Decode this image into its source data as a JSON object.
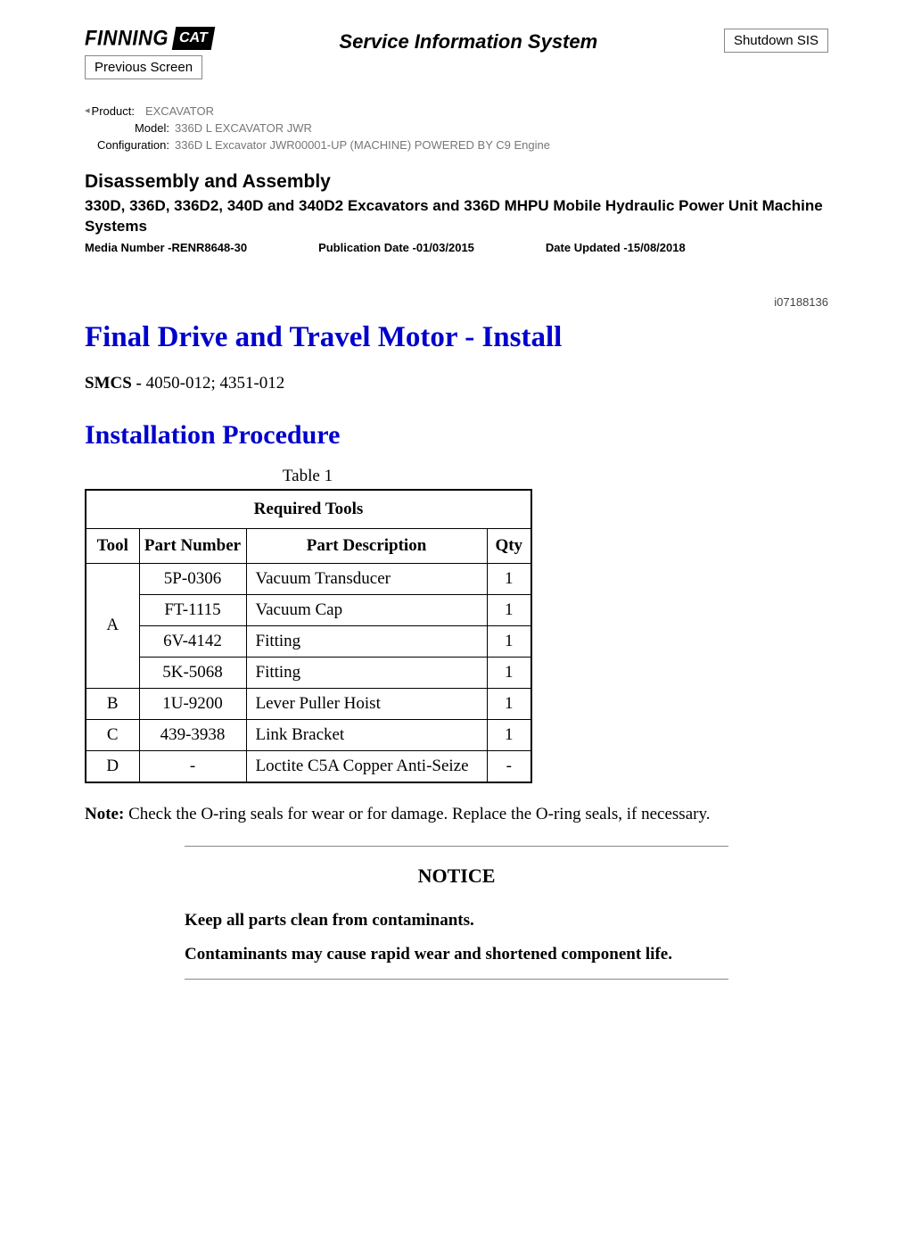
{
  "header": {
    "brand_text": "FINNING",
    "cat_logo_text": "CAT",
    "sis_title": "Service Information System",
    "shutdown_label": "Shutdown SIS",
    "previous_label": "Previous Screen"
  },
  "meta": {
    "product_label": "Product:",
    "product_value": "EXCAVATOR",
    "model_label": "Model:",
    "model_value": "336D L EXCAVATOR JWR",
    "config_label": "Configuration:",
    "config_value": "336D L Excavator JWR00001-UP (MACHINE) POWERED BY C9 Engine"
  },
  "doc": {
    "type": "Disassembly and Assembly",
    "title": "330D, 336D, 336D2, 340D and 340D2 Excavators and 336D MHPU Mobile Hydraulic Power Unit Machine Systems",
    "media_number": "Media Number -RENR8648-30",
    "pub_date": "Publication Date -01/03/2015",
    "date_updated": "Date Updated -15/08/2018",
    "doc_id": "i07188136"
  },
  "content": {
    "main_heading": "Final Drive and Travel Motor - Install",
    "smcs_label": "SMCS -",
    "smcs_value": " 4050-012; 4351-012",
    "sub_heading": "Installation Procedure"
  },
  "table": {
    "caption": "Table 1",
    "title": "Required Tools",
    "columns": [
      "Tool",
      "Part Number",
      "Part Description",
      "Qty"
    ],
    "rows": [
      {
        "tool": "A",
        "rowspan": 4,
        "pn": "5P-0306",
        "desc": "Vacuum Transducer",
        "qty": "1"
      },
      {
        "tool": "",
        "rowspan": 0,
        "pn": "FT-1115",
        "desc": "Vacuum Cap",
        "qty": "1"
      },
      {
        "tool": "",
        "rowspan": 0,
        "pn": "6V-4142",
        "desc": "Fitting",
        "qty": "1"
      },
      {
        "tool": "",
        "rowspan": 0,
        "pn": "5K-5068",
        "desc": "Fitting",
        "qty": "1"
      },
      {
        "tool": "B",
        "rowspan": 1,
        "pn": "1U-9200",
        "desc": "Lever Puller Hoist",
        "qty": "1"
      },
      {
        "tool": "C",
        "rowspan": 1,
        "pn": "439-3938",
        "desc": "Link Bracket",
        "qty": "1"
      },
      {
        "tool": "D",
        "rowspan": 1,
        "pn": "-",
        "desc": "Loctite C5A Copper Anti-Seize",
        "qty": "-"
      }
    ]
  },
  "note": {
    "label": "Note:",
    "text": " Check the O-ring seals for wear or for damage. Replace the O-ring seals, if necessary."
  },
  "notice": {
    "title": "NOTICE",
    "line1": "Keep all parts clean from contaminants.",
    "line2": "Contaminants may cause rapid wear and shortened component life."
  }
}
